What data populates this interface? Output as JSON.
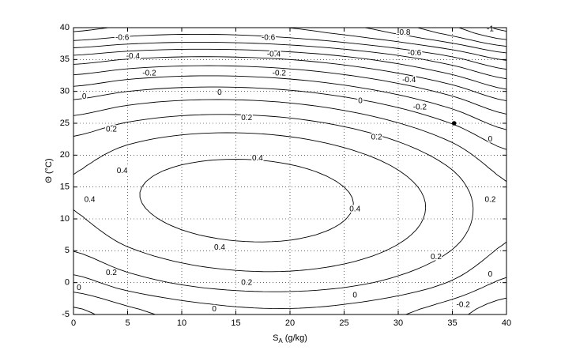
{
  "chart_data": {
    "type": "contour",
    "xlabel_parts": [
      "S",
      "A",
      " (g/kg)"
    ],
    "ylabel": "Θ (°C)",
    "x": [
      0,
      5,
      10,
      15,
      20,
      25,
      30,
      35,
      40
    ],
    "y": [
      -5,
      0,
      5,
      10,
      15,
      20,
      25,
      30,
      35,
      40
    ],
    "z": [
      [
        -0.133,
        -0.038,
        0.029,
        0.067,
        0.077,
        0.057,
        0.009,
        -0.068,
        -0.173
      ],
      [
        0.06,
        0.15,
        0.212,
        0.245,
        0.25,
        0.225,
        0.172,
        0.09,
        -0.02
      ],
      [
        0.202,
        0.287,
        0.344,
        0.372,
        0.372,
        0.342,
        0.284,
        0.197,
        0.082
      ],
      [
        0.287,
        0.367,
        0.419,
        0.442,
        0.437,
        0.402,
        0.339,
        0.247,
        0.127
      ],
      [
        0.31,
        0.385,
        0.432,
        0.45,
        0.44,
        0.4,
        0.332,
        0.235,
        0.11
      ],
      [
        0.263,
        0.333,
        0.375,
        0.388,
        0.373,
        0.328,
        0.255,
        0.153,
        0.023
      ],
      [
        0.141,
        0.206,
        0.243,
        0.251,
        0.231,
        0.181,
        0.103,
        -0.004,
        -0.139
      ],
      [
        -0.06,
        0.0,
        0.032,
        0.035,
        0.01,
        -0.045,
        -0.128,
        -0.24,
        -0.38
      ],
      [
        -0.35,
        -0.295,
        -0.268,
        -0.27,
        -0.3,
        -0.36,
        -0.448,
        -0.565,
        -0.71
      ],
      [
        -0.732,
        -0.682,
        -0.66,
        -0.667,
        -0.702,
        -0.767,
        -0.86,
        -0.982,
        -1.132
      ]
    ],
    "levels": [
      -1.1,
      -1.0,
      -0.9,
      -0.8,
      -0.7,
      -0.6,
      -0.5,
      -0.4,
      -0.3,
      -0.2,
      -0.1,
      0,
      0.1,
      0.2,
      0.3,
      0.4
    ],
    "color": "#000000",
    "contour_labels": [
      {
        "x": 4.5,
        "y": 38.4,
        "value": -0.6
      },
      {
        "x": 18,
        "y": 38.4,
        "value": -0.6
      },
      {
        "x": 30.5,
        "y": 39.2,
        "value": -0.8
      },
      {
        "x": 38.5,
        "y": 39.8,
        "value": -1
      },
      {
        "x": 5.5,
        "y": 35.5,
        "value": -0.4
      },
      {
        "x": 18.5,
        "y": 35.8,
        "value": -0.4
      },
      {
        "x": 31.5,
        "y": 36,
        "value": -0.6
      },
      {
        "x": 7,
        "y": 32.8,
        "value": -0.2
      },
      {
        "x": 19,
        "y": 32.8,
        "value": -0.2
      },
      {
        "x": 31,
        "y": 31.8,
        "value": -0.4
      },
      {
        "x": 32,
        "y": 27.5,
        "value": -0.2
      },
      {
        "x": 1,
        "y": 29.2,
        "value": 0
      },
      {
        "x": 13.5,
        "y": 29.8,
        "value": 0
      },
      {
        "x": 26.5,
        "y": 28.5,
        "value": 0
      },
      {
        "x": 3.5,
        "y": 24,
        "value": 0.2
      },
      {
        "x": 16,
        "y": 25.8,
        "value": 0.2
      },
      {
        "x": 28,
        "y": 22.8,
        "value": 0.2
      },
      {
        "x": 38.5,
        "y": 22.5,
        "value": 0
      },
      {
        "x": 17,
        "y": 19.5,
        "value": 0.4
      },
      {
        "x": 4.5,
        "y": 17.5,
        "value": 0.4
      },
      {
        "x": 1.5,
        "y": 13,
        "value": 0.4
      },
      {
        "x": 26,
        "y": 11.5,
        "value": 0.4
      },
      {
        "x": 38.5,
        "y": 13,
        "value": 0.2
      },
      {
        "x": 13.5,
        "y": 5.5,
        "value": 0.4
      },
      {
        "x": 33.5,
        "y": 4,
        "value": 0.2
      },
      {
        "x": 16,
        "y": 0,
        "value": 0.2
      },
      {
        "x": 3.5,
        "y": 1.5,
        "value": 0.2
      },
      {
        "x": 0.5,
        "y": -0.8,
        "value": 0
      },
      {
        "x": 38.5,
        "y": 1.3,
        "value": 0
      },
      {
        "x": 26,
        "y": -2,
        "value": 0
      },
      {
        "x": 13,
        "y": -4.2,
        "value": 0
      },
      {
        "x": 36,
        "y": -3.5,
        "value": -0.2
      }
    ],
    "points": {
      "x": [
        35.16
      ],
      "y": [
        25
      ]
    },
    "xlim": [
      0,
      40
    ],
    "ylim": [
      -5,
      40
    ],
    "xticks": [
      0,
      5,
      10,
      15,
      20,
      25,
      30,
      35,
      40
    ],
    "yticks": [
      -5,
      0,
      5,
      10,
      15,
      20,
      25,
      30,
      35,
      40
    ],
    "grid": true
  }
}
